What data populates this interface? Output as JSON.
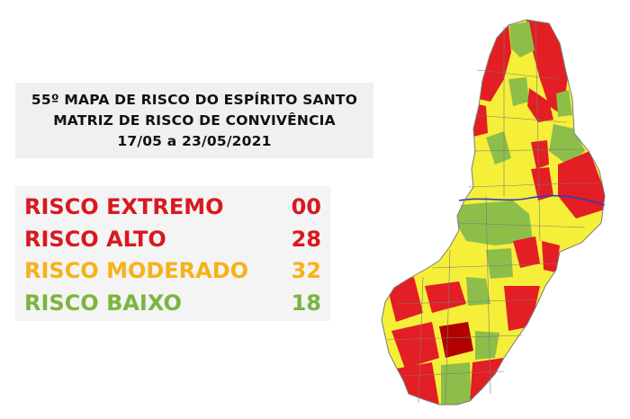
{
  "header": {
    "title_line1": "55º MAPA DE RISCO DO ESPÍRITO SANTO",
    "title_line2": "MATRIZ DE RISCO DE CONVIVÊNCIA",
    "date_range": "17/05 a 23/05/2021"
  },
  "legend": [
    {
      "label": "RISCO EXTREMO",
      "value": "00",
      "color": "#d71920"
    },
    {
      "label": "RISCO ALTO",
      "value": "28",
      "color": "#d71920"
    },
    {
      "label": "RISCO MODERADO",
      "value": "32",
      "color": "#f6b21a"
    },
    {
      "label": "RISCO BAIXO",
      "value": "18",
      "color": "#7cb440"
    }
  ],
  "map_colors": {
    "extremo": "#b00000",
    "alto": "#e31e24",
    "moderado": "#f5ef3a",
    "baixo": "#8dbe4a",
    "border": "#7a7a7a",
    "river": "#2a3fbf"
  }
}
